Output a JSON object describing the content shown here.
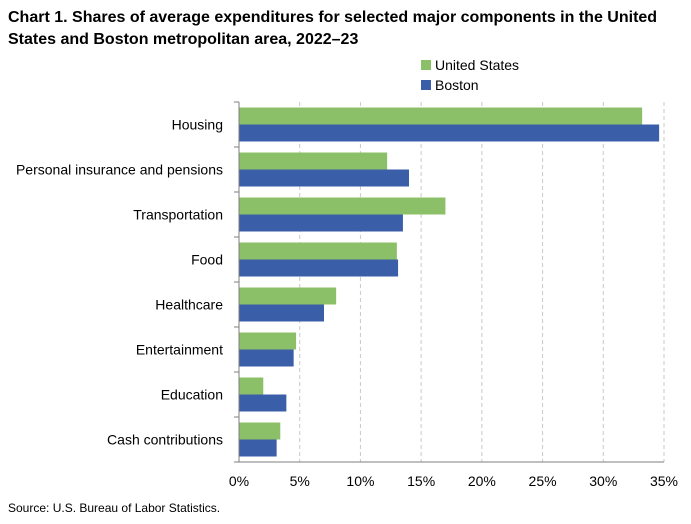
{
  "title": "Chart 1. Shares of average expenditures for selected major components in the United States and Boston metropolitan area, 2022–23",
  "source": "Source: U.S. Bureau of Labor Statistics.",
  "chart_data": {
    "type": "bar",
    "orientation": "horizontal",
    "categories": [
      "Housing",
      "Personal insurance and pensions",
      "Transportation",
      "Food",
      "Healthcare",
      "Entertainment",
      "Education",
      "Cash contributions"
    ],
    "series": [
      {
        "name": "United States",
        "color": "#8cc068",
        "values": [
          33.2,
          12.2,
          17.0,
          13.0,
          8.0,
          4.7,
          2.0,
          3.4
        ]
      },
      {
        "name": "Boston",
        "color": "#3a5ea8",
        "values": [
          34.6,
          14.0,
          13.5,
          13.1,
          7.0,
          4.5,
          3.9,
          3.1
        ]
      }
    ],
    "xlim": [
      0,
      35
    ],
    "xticks": [
      0,
      5,
      10,
      15,
      20,
      25,
      30,
      35
    ],
    "xtick_labels": [
      "0%",
      "5%",
      "10%",
      "15%",
      "20%",
      "25%",
      "30%",
      "35%"
    ],
    "grid": "vertical dashed",
    "legend_position": "top-right"
  }
}
